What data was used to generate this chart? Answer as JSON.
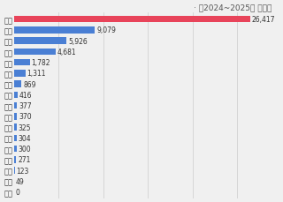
{
  "title": "〔2024~2025년 기준〕",
  "categories": [
    "전국",
    "경기",
    "인청",
    "서울",
    "충남",
    "부산",
    "경남",
    "경북",
    "울산",
    "충북",
    "대구",
    "광주",
    "전남",
    "세종",
    "대전",
    "제주",
    "전북"
  ],
  "values": [
    26417,
    9079,
    5926,
    4681,
    1782,
    1311,
    869,
    416,
    377,
    370,
    325,
    304,
    300,
    271,
    123,
    49,
    0
  ],
  "bar_color_main": "#4a7fd4",
  "bar_color_total": "#e8445a",
  "label_values": [
    "26,417",
    "9,079",
    "5,926",
    "4,681",
    "1,782",
    "1,311",
    "869",
    "416",
    "377",
    "370",
    "325",
    "304",
    "300",
    "271",
    "123",
    "49",
    "0"
  ],
  "background_color": "#f0f0f0",
  "title_fontsize": 6.5,
  "label_fontsize": 5.5,
  "category_fontsize": 6.0,
  "title_color": "#555555",
  "label_color": "#333333"
}
